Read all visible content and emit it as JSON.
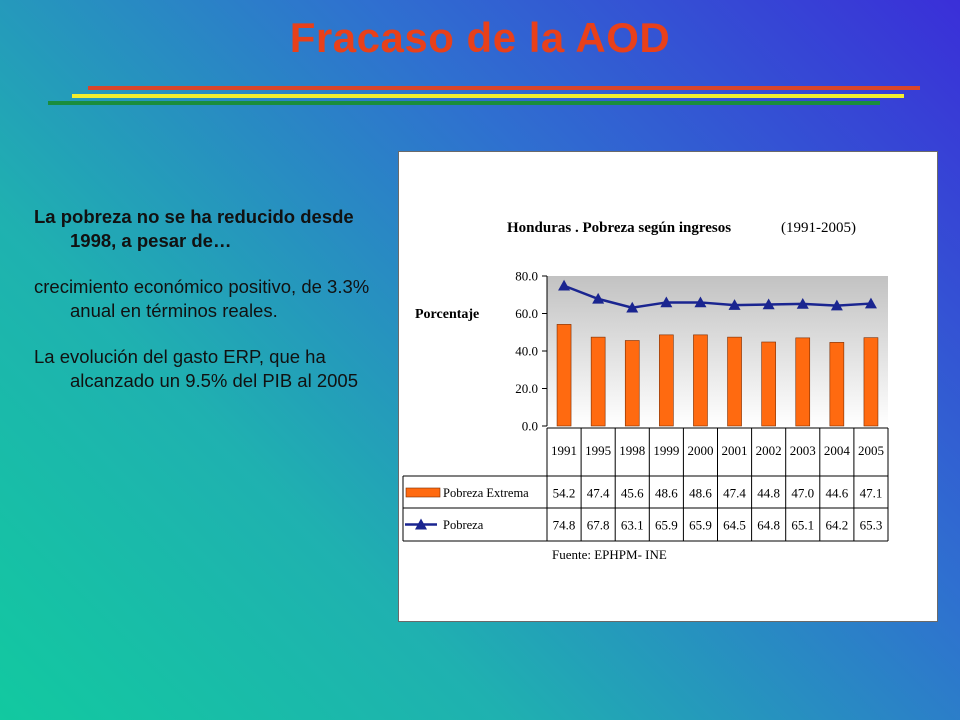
{
  "slide": {
    "title": "Fracaso de la AOD",
    "paragraphs": [
      "La pobreza no se ha reducido desde 1998, a pesar de…",
      "crecimiento económico positivo, de 3.3% anual en términos reales.",
      "La evolución del gasto ERP, que ha alcanzado un 9.5% del PIB al 2005"
    ]
  },
  "colors": {
    "title": "#e8401a",
    "bar": "#ff6a10",
    "line": "#1a2590"
  },
  "chart_data": {
    "type": "bar",
    "title": "Honduras . Pobreza según ingresos",
    "subtitle": "(1991-2005)",
    "ylabel": "Porcentaje",
    "ylim": [
      0,
      80
    ],
    "yticks": [
      "0.0",
      "20.0",
      "40.0",
      "60.0",
      "80.0"
    ],
    "categories": [
      "1991",
      "1995",
      "1998",
      "1999",
      "2000",
      "2001",
      "2002",
      "2003",
      "2004",
      "2005"
    ],
    "series": [
      {
        "name": "Pobreza Extrema",
        "type": "bar",
        "values": [
          54.2,
          47.4,
          45.6,
          48.6,
          48.6,
          47.4,
          44.8,
          47.0,
          44.6,
          47.1
        ],
        "labels": [
          "54.2",
          "47.4",
          "45.6",
          "48.6",
          "48.6",
          "47.4",
          "44.8",
          "47.0",
          "44.6",
          "47.1"
        ]
      },
      {
        "name": "Pobreza",
        "type": "line",
        "values": [
          74.8,
          67.8,
          63.1,
          65.9,
          65.9,
          64.5,
          64.8,
          65.1,
          64.2,
          65.3
        ],
        "labels": [
          "74.8",
          "67.8",
          "63.1",
          "65.9",
          "65.9",
          "64.5",
          "64.8",
          "65.1",
          "64.2",
          "65.3"
        ]
      }
    ],
    "legend": "data-table",
    "source": "Fuente: EPHPM- INE"
  }
}
